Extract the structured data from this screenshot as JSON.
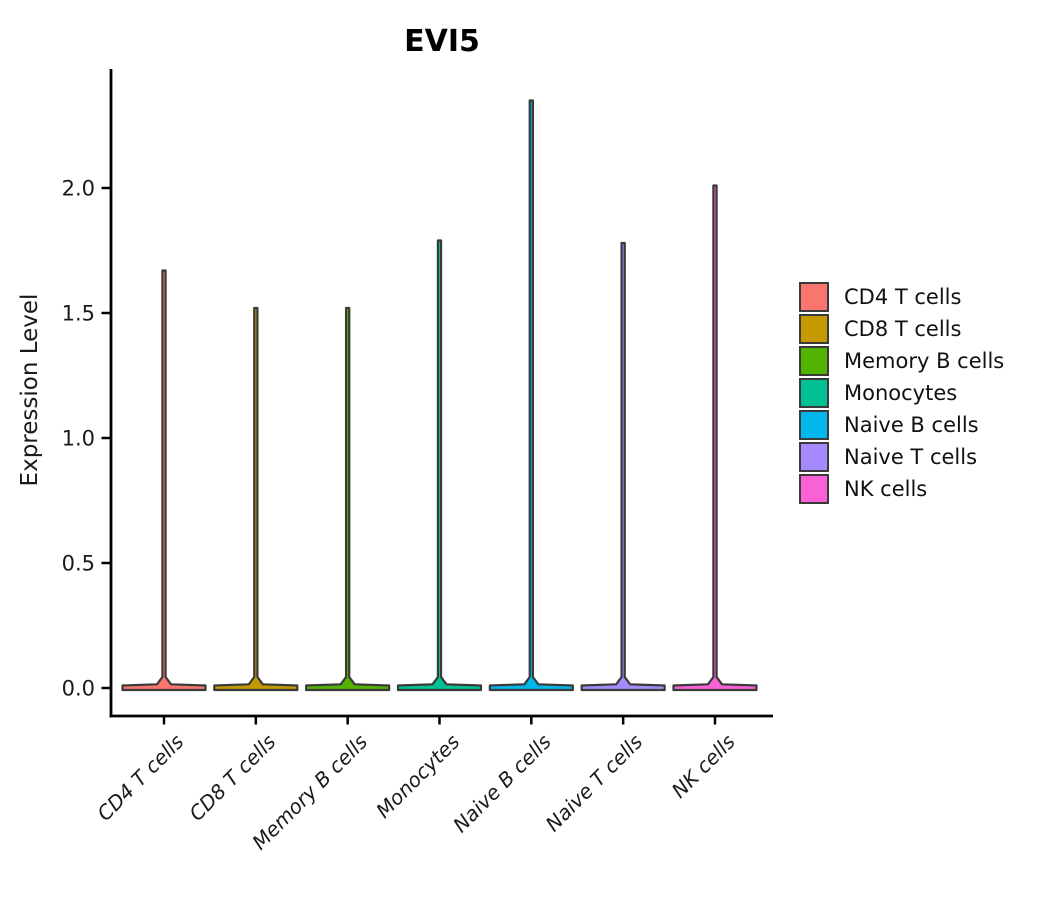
{
  "chart_data": {
    "type": "violin",
    "title": "EVI5",
    "ylabel": "Expression Level",
    "categories": [
      "CD4 T cells",
      "CD8 T cells",
      "Memory B cells",
      "Monocytes",
      "Naive B cells",
      "Naive T cells",
      "NK cells"
    ],
    "series": [
      {
        "name": "CD4 T cells",
        "color": "#F8766D",
        "max_expression": 1.67
      },
      {
        "name": "CD8 T cells",
        "color": "#C49A00",
        "max_expression": 1.52
      },
      {
        "name": "Memory B cells",
        "color": "#53B400",
        "max_expression": 1.52
      },
      {
        "name": "Monocytes",
        "color": "#00C094",
        "max_expression": 1.79
      },
      {
        "name": "Naive B cells",
        "color": "#00B6EB",
        "max_expression": 2.35
      },
      {
        "name": "Naive T cells",
        "color": "#A58AFF",
        "max_expression": 1.78
      },
      {
        "name": "NK cells",
        "color": "#FB61D7",
        "max_expression": 2.01
      }
    ],
    "distribution_shape": "nearly all density at 0 (wide flat base), thin spike up to max expression",
    "ytick_labels": [
      "0.0",
      "0.5",
      "1.0",
      "1.5",
      "2.0"
    ],
    "ytick_values": [
      0,
      0.5,
      1,
      1.5,
      2
    ],
    "ylim": [
      -0.11,
      2.47
    ],
    "grid": "off",
    "legend_position": "right",
    "axis_color": "#000000",
    "violin_outline_color": "#3A3A3A",
    "tick_label_color": "#1a1a1a",
    "background_color": "#FFFFFF"
  }
}
